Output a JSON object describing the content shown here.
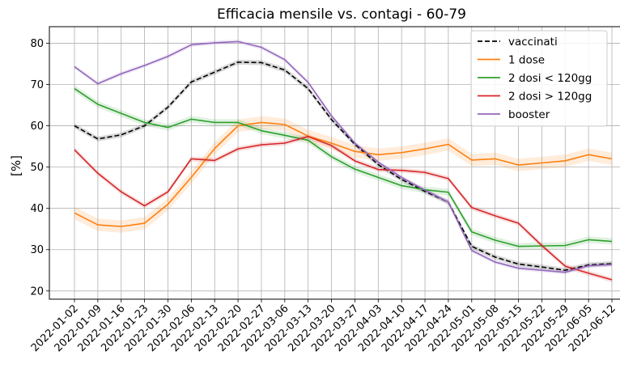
{
  "chart_data": {
    "type": "line",
    "title": "Efficacia mensile vs. contagi - 60-79",
    "xlabel": "",
    "ylabel": "[%]",
    "ylim": [
      18,
      84
    ],
    "yticks": [
      20,
      30,
      40,
      50,
      60,
      70,
      80
    ],
    "grid": true,
    "legend_position": "top-right",
    "categories": [
      "2022-01-02",
      "2022-01-09",
      "2022-01-16",
      "2022-01-23",
      "2022-01-30",
      "2022-02-06",
      "2022-02-13",
      "2022-02-20",
      "2022-02-27",
      "2022-03-06",
      "2022-03-13",
      "2022-03-20",
      "2022-03-27",
      "2022-04-03",
      "2022-04-10",
      "2022-04-17",
      "2022-04-24",
      "2022-05-01",
      "2022-05-08",
      "2022-05-15",
      "2022-05-22",
      "2022-05-29",
      "2022-06-05",
      "2022-06-12"
    ],
    "series": [
      {
        "name": "vaccinati",
        "color": "#000000",
        "dashed": true,
        "band": 0.6,
        "values": [
          60.0,
          56.8,
          57.8,
          60.0,
          64.5,
          70.6,
          73.0,
          75.4,
          75.3,
          73.5,
          69.0,
          61.5,
          55.5,
          50.6,
          47.0,
          44.1,
          41.5,
          30.8,
          28.2,
          26.5,
          25.8,
          25.0,
          26.3,
          26.6
        ]
      },
      {
        "name": "1 dose",
        "color": "#ff7f0e",
        "dashed": false,
        "band": 1.5,
        "values": [
          38.9,
          36.0,
          35.6,
          36.4,
          41.0,
          47.5,
          54.5,
          60.0,
          60.8,
          60.3,
          57.5,
          55.8,
          53.8,
          53.0,
          53.5,
          54.4,
          55.5,
          51.7,
          52.0,
          50.5,
          51.0,
          51.5,
          53.0,
          52.0
        ]
      },
      {
        "name": "2 dosi < 120gg",
        "color": "#2ca02c",
        "dashed": false,
        "band": 0.8,
        "values": [
          69.0,
          65.2,
          63.0,
          60.8,
          59.6,
          61.6,
          60.8,
          60.8,
          58.8,
          57.7,
          56.5,
          52.5,
          49.5,
          47.5,
          45.5,
          44.5,
          43.9,
          34.3,
          32.3,
          30.8,
          30.9,
          31.0,
          32.4,
          32.0
        ]
      },
      {
        "name": "2 dosi > 120gg",
        "color": "#d62728",
        "dashed": false,
        "band": 0.6,
        "values": [
          54.2,
          48.5,
          44.0,
          40.6,
          44.0,
          52.0,
          51.6,
          54.4,
          55.4,
          55.8,
          57.4,
          55.2,
          51.5,
          49.4,
          49.2,
          48.7,
          47.2,
          40.2,
          38.2,
          36.4,
          31.0,
          26.0,
          24.3,
          22.7
        ]
      },
      {
        "name": "booster",
        "color": "#9467bd",
        "dashed": false,
        "band": 0.5,
        "values": [
          74.3,
          70.2,
          72.6,
          74.6,
          76.8,
          79.6,
          80.1,
          80.4,
          79.0,
          76.0,
          70.5,
          62.4,
          55.8,
          51.2,
          47.5,
          44.4,
          41.5,
          29.8,
          27.0,
          25.5,
          25.0,
          24.5,
          26.1,
          26.4
        ]
      }
    ]
  }
}
